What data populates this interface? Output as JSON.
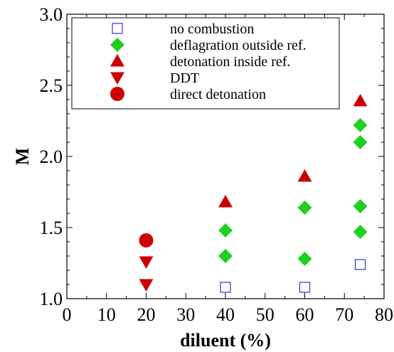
{
  "chart_data": {
    "type": "scatter",
    "xlabel": "diluent (%)",
    "ylabel": "M",
    "xlim": [
      0,
      80
    ],
    "ylim": [
      1.0,
      3.0
    ],
    "x_ticks": [
      0,
      10,
      20,
      30,
      40,
      50,
      60,
      70,
      80
    ],
    "y_ticks": [
      1.0,
      1.5,
      2.0,
      2.5,
      3.0
    ],
    "x_tick_labels": [
      "0",
      "10",
      "20",
      "30",
      "40",
      "50",
      "60",
      "70",
      "80"
    ],
    "y_tick_labels": [
      "1.0",
      "1.5",
      "2.0",
      "2.5",
      "3.0"
    ],
    "grid": false,
    "legend_position": "top-left",
    "series": [
      {
        "name": "no combustion",
        "marker": "square-open",
        "color": "#3333cc",
        "points": [
          [
            40,
            1.08
          ],
          [
            60,
            1.08
          ],
          [
            74,
            1.24
          ]
        ]
      },
      {
        "name": "deflagration outside ref.",
        "marker": "diamond",
        "color": "#1fd01f",
        "points": [
          [
            40,
            1.3
          ],
          [
            40,
            1.48
          ],
          [
            60,
            1.28
          ],
          [
            60,
            1.64
          ],
          [
            74,
            1.47
          ],
          [
            74,
            1.65
          ],
          [
            74,
            2.1
          ],
          [
            74,
            2.22
          ]
        ]
      },
      {
        "name": "detonation inside ref.",
        "marker": "triangle-up",
        "color": "#cc0000",
        "points": [
          [
            40,
            1.68
          ],
          [
            60,
            1.86
          ],
          [
            74,
            2.39
          ]
        ]
      },
      {
        "name": "DDT",
        "marker": "triangle-down",
        "color": "#cc0000",
        "points": [
          [
            20,
            1.1
          ],
          [
            20,
            1.26
          ]
        ]
      },
      {
        "name": "direct detonation",
        "marker": "circle",
        "color": "#cc0000",
        "points": [
          [
            20,
            1.41
          ]
        ]
      }
    ]
  }
}
